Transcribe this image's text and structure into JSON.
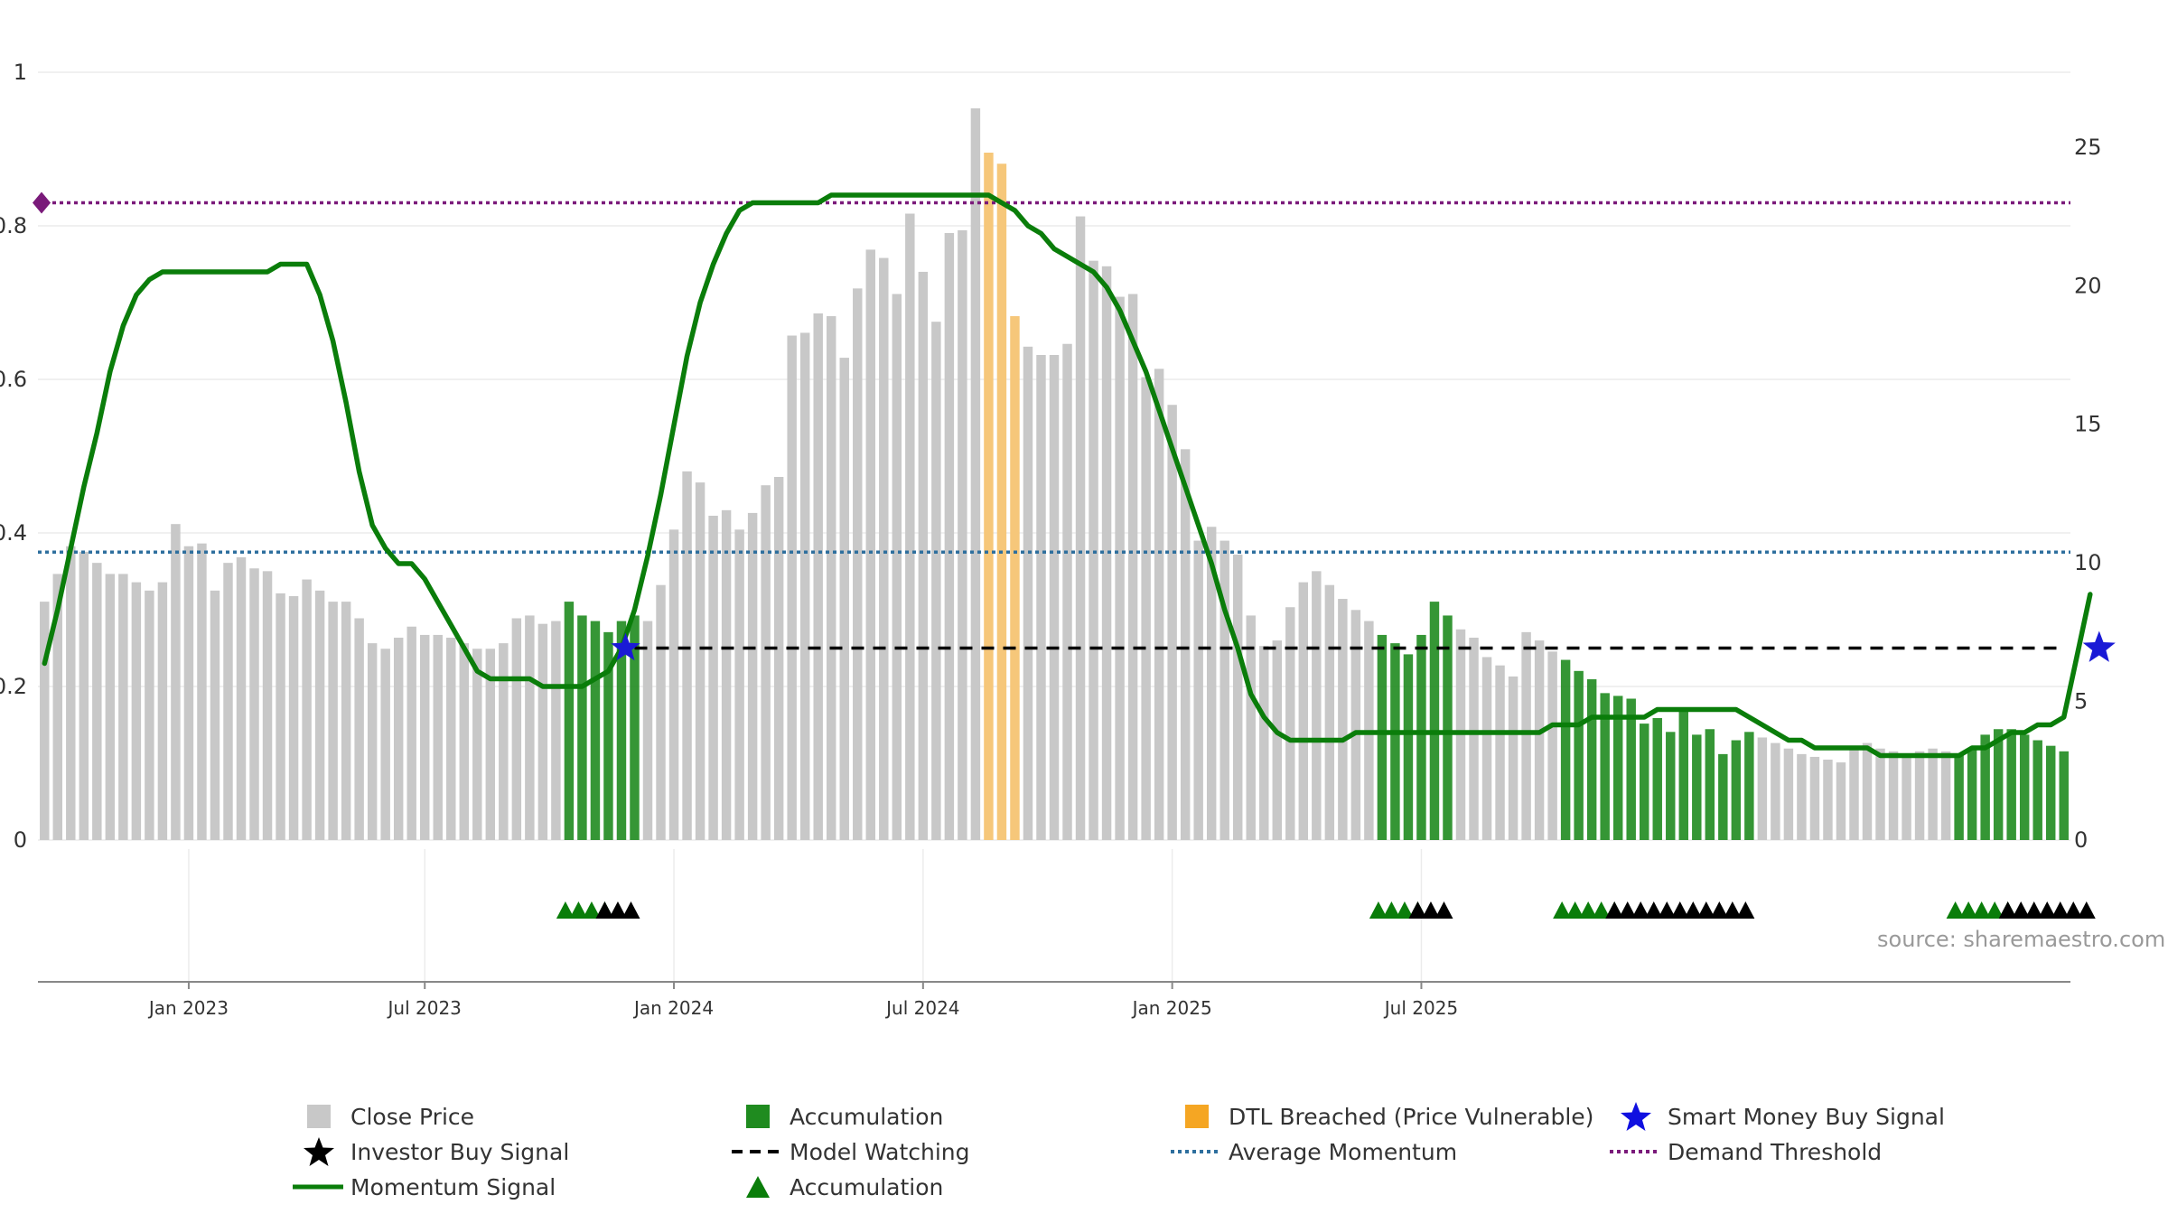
{
  "source_note": "source: sharemaestro.com",
  "legend": {
    "close_price": "Close Price",
    "accumulation_bar": "Accumulation",
    "dtl_breached": "DTL Breached (Price Vulnerable)",
    "smart_money": "Smart Money Buy Signal",
    "investor_buy": "Investor Buy Signal",
    "model_watching": "Model Watching",
    "average_momentum": "Average Momentum",
    "demand_threshold": "Demand Threshold",
    "momentum_signal": "Momentum Signal",
    "accumulation_marker": "Accumulation"
  },
  "colors": {
    "close_price": "#c8c8c8",
    "accumulation": "#1f8b1f",
    "dtl": "#f6c77a",
    "momentum": "#0a7d0a",
    "average_momentum": "#2e6f9e",
    "demand_threshold": "#7a1a7a",
    "smart_money": "#1a1ad6",
    "investor": "#000000"
  },
  "chart_data": {
    "type": "bar",
    "x_ticks": [
      "Jan 2023",
      "Jul 2023",
      "Jan 2024",
      "Jul 2024",
      "Jan 2025",
      "Jul 2025"
    ],
    "left_axis": {
      "ticks": [
        "0",
        "0.2",
        "0.4",
        "0.6",
        "0.8",
        "1"
      ],
      "ylim": [
        0,
        1
      ]
    },
    "right_axis": {
      "ticks": [
        "0",
        "5",
        "10",
        "15",
        "20",
        "25"
      ],
      "ylim": [
        0,
        27.7
      ]
    },
    "close_price": [
      8.6,
      9.6,
      10.6,
      10.4,
      10.0,
      9.6,
      9.6,
      9.3,
      9.0,
      9.3,
      11.4,
      10.6,
      10.7,
      9.0,
      10.0,
      10.2,
      9.8,
      9.7,
      8.9,
      8.8,
      9.4,
      9.0,
      8.6,
      8.6,
      8.0,
      7.1,
      6.9,
      7.3,
      7.7,
      7.4,
      7.4,
      7.3,
      7.1,
      6.9,
      6.9,
      7.1,
      8.0,
      8.1,
      7.8,
      7.9,
      8.6,
      8.1,
      7.9,
      7.5,
      7.9,
      8.1,
      7.9,
      9.2,
      11.2,
      13.3,
      12.9,
      11.7,
      11.9,
      11.2,
      11.8,
      12.8,
      13.1,
      18.2,
      18.3,
      19.0,
      18.9,
      17.4,
      19.9,
      21.3,
      21.0,
      19.7,
      22.6,
      20.5,
      18.7,
      21.9,
      22.0,
      26.4,
      24.8,
      24.4,
      18.9,
      17.8,
      17.5,
      17.5,
      17.9,
      22.5,
      20.9,
      20.7,
      19.6,
      19.7,
      16.7,
      17.0,
      15.7,
      14.1,
      10.8,
      11.3,
      10.8,
      10.3,
      8.1,
      7.0,
      7.2,
      8.4,
      9.3,
      9.7,
      9.2,
      8.7,
      8.3,
      7.9,
      7.4,
      7.1,
      6.7,
      7.4,
      8.6,
      8.1,
      7.6,
      7.3,
      6.6,
      6.3,
      5.9,
      7.5,
      7.2,
      6.8,
      6.5,
      6.1,
      5.8,
      5.3,
      5.2,
      5.1,
      4.2,
      4.4,
      3.9,
      4.7,
      3.8,
      4.0,
      3.1,
      3.6,
      3.9,
      3.7,
      3.5,
      3.3,
      3.1,
      3.0,
      2.9,
      2.8,
      3.4,
      3.5,
      3.3,
      3.2,
      3.0,
      3.2,
      3.3,
      3.2,
      3.1,
      3.3,
      3.8,
      4.0,
      4.0,
      3.8,
      3.6,
      3.4,
      3.2
    ],
    "accumulation_ranges": [
      [
        40,
        45
      ],
      [
        102,
        107
      ],
      [
        116,
        130
      ],
      [
        146,
        156
      ]
    ],
    "dtl_ranges": [
      [
        72,
        74
      ]
    ],
    "momentum_signal": [
      0.23,
      0.3,
      0.38,
      0.46,
      0.53,
      0.61,
      0.67,
      0.71,
      0.73,
      0.74,
      0.74,
      0.74,
      0.74,
      0.74,
      0.74,
      0.74,
      0.74,
      0.74,
      0.75,
      0.75,
      0.75,
      0.71,
      0.65,
      0.57,
      0.48,
      0.41,
      0.38,
      0.36,
      0.36,
      0.34,
      0.31,
      0.28,
      0.25,
      0.22,
      0.21,
      0.21,
      0.21,
      0.21,
      0.2,
      0.2,
      0.2,
      0.2,
      0.21,
      0.22,
      0.25,
      0.3,
      0.37,
      0.45,
      0.54,
      0.63,
      0.7,
      0.75,
      0.79,
      0.82,
      0.83,
      0.83,
      0.83,
      0.83,
      0.83,
      0.83,
      0.84,
      0.84,
      0.84,
      0.84,
      0.84,
      0.84,
      0.84,
      0.84,
      0.84,
      0.84,
      0.84,
      0.84,
      0.84,
      0.83,
      0.82,
      0.8,
      0.79,
      0.77,
      0.76,
      0.75,
      0.74,
      0.72,
      0.69,
      0.65,
      0.61,
      0.56,
      0.51,
      0.46,
      0.41,
      0.36,
      0.3,
      0.25,
      0.19,
      0.16,
      0.14,
      0.13,
      0.13,
      0.13,
      0.13,
      0.13,
      0.14,
      0.14,
      0.14,
      0.14,
      0.14,
      0.14,
      0.14,
      0.14,
      0.14,
      0.14,
      0.14,
      0.14,
      0.14,
      0.14,
      0.14,
      0.15,
      0.15,
      0.15,
      0.16,
      0.16,
      0.16,
      0.16,
      0.16,
      0.17,
      0.17,
      0.17,
      0.17,
      0.17,
      0.17,
      0.17,
      0.16,
      0.15,
      0.14,
      0.13,
      0.13,
      0.12,
      0.12,
      0.12,
      0.12,
      0.12,
      0.11,
      0.11,
      0.11,
      0.11,
      0.11,
      0.11,
      0.11,
      0.12,
      0.12,
      0.13,
      0.14,
      0.14,
      0.15,
      0.15,
      0.16,
      0.24,
      0.32
    ],
    "average_momentum": 0.375,
    "demand_threshold": 0.83,
    "model_watching": 0.25,
    "model_watching_start": 45,
    "smart_money_signals": [
      45,
      156
    ],
    "accumulation_markers": [
      [
        40,
        43
      ],
      [
        102,
        105
      ],
      [
        116,
        120
      ],
      [
        146,
        150
      ]
    ],
    "investor_markers": [
      [
        43,
        45
      ],
      [
        105,
        107
      ],
      [
        120,
        130
      ],
      [
        150,
        156
      ]
    ],
    "grid": true,
    "legend_position": "bottom"
  }
}
